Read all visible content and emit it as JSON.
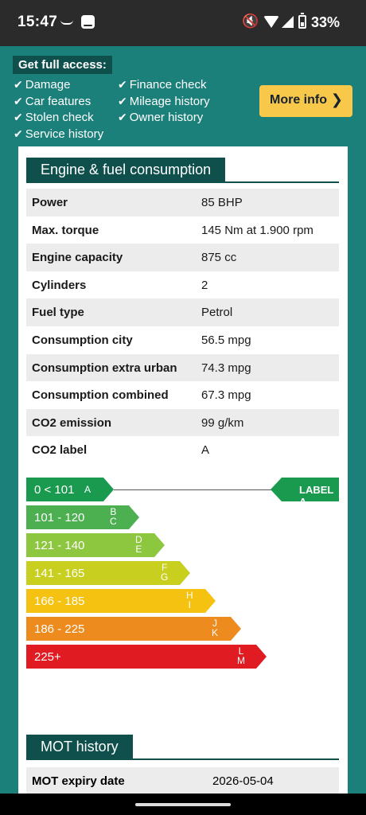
{
  "status_bar": {
    "time": "15:47",
    "battery": "33%"
  },
  "promo": {
    "title": "Get full access:",
    "features": [
      "Damage",
      "Finance check",
      "Car features",
      "Mileage history",
      "Stolen check",
      "Owner history",
      "Service history"
    ],
    "button_label": "More info"
  },
  "engine": {
    "heading": "Engine & fuel consumption",
    "rows": [
      {
        "key": "Power",
        "value": "85 BHP"
      },
      {
        "key": "Max. torque",
        "value": "145 Nm at 1.900 rpm"
      },
      {
        "key": "Engine capacity",
        "value": "875 cc"
      },
      {
        "key": "Cylinders",
        "value": "2"
      },
      {
        "key": "Fuel type",
        "value": "Petrol"
      },
      {
        "key": "Consumption city",
        "value": "56.5 mpg"
      },
      {
        "key": "Consumption extra urban",
        "value": "74.3 mpg"
      },
      {
        "key": "Consumption combined",
        "value": "67.3 mpg"
      },
      {
        "key": "CO2 emission",
        "value": "99 g/km"
      },
      {
        "key": "CO2 label",
        "value": "A"
      }
    ]
  },
  "energy_label": {
    "current_label": "LABEL A",
    "bands": [
      {
        "range": "0 < 101",
        "letters": "A",
        "color": "#1a9a4f"
      },
      {
        "range": "101 - 120",
        "letters": "B\nC",
        "color": "#4caf50"
      },
      {
        "range": "121 - 140",
        "letters": "D\nE",
        "color": "#8dc63f"
      },
      {
        "range": "141 - 165",
        "letters": "F\nG",
        "color": "#c8cf1f"
      },
      {
        "range": "166 - 185",
        "letters": "H\nI",
        "color": "#f5c211"
      },
      {
        "range": "186 - 225",
        "letters": "J\nK",
        "color": "#ed8b1f"
      },
      {
        "range": "225+",
        "letters": "L\nM",
        "color": "#e01b22"
      }
    ]
  },
  "mot": {
    "heading": "MOT history",
    "expiry_label": "MOT expiry date",
    "expiry_value": "2026-05-04"
  }
}
